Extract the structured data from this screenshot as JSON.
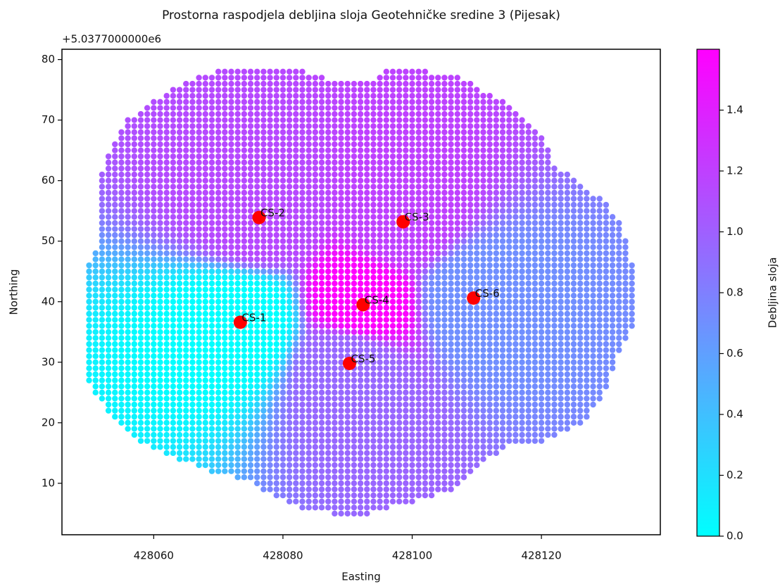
{
  "chart_data": {
    "type": "scatter",
    "title": "Prostorna raspodjela debljina sloja Geotehničke sredine 3 (Pijesak)",
    "offset_text": "+5.0377000000e6",
    "xlabel": "Easting",
    "ylabel": "Northing",
    "xlim": [
      428045.8,
      428138.4
    ],
    "ylim": [
      1.5,
      81.7
    ],
    "xticks": [
      428060,
      428080,
      428100,
      428120
    ],
    "yticks": [
      10,
      20,
      30,
      40,
      50,
      60,
      70,
      80
    ],
    "grid_step": 1,
    "outline": {
      "x": [
        428051.5,
        428052.6,
        428055.3,
        428059.1,
        428064.5,
        428070.0,
        428083.3,
        428087.4,
        428092.8,
        428096.1,
        428101.3,
        428107.0,
        428112.4,
        428117.9,
        428120.6,
        428121.7,
        428124.4,
        428129.9,
        428132.6,
        428134.2,
        428134.4,
        428132.0,
        428129.9,
        428126.6,
        428120.1,
        428114.1,
        428110.3,
        428107.0,
        428101.5,
        428092.8,
        428087.9,
        428083.0,
        428077.6,
        428073.8,
        428068.9,
        428062.3,
        428057.4,
        428053.6,
        428050.4,
        428049.5,
        428049.5,
        428051.5
      ],
      "y": [
        59.4,
        63.7,
        69.5,
        72.4,
        76.2,
        78.2,
        78.2,
        76.5,
        76.2,
        78.2,
        78.2,
        77.1,
        74.2,
        70.1,
        66.6,
        62.5,
        61.4,
        56.2,
        52.7,
        45.7,
        35.8,
        31.7,
        24.8,
        20.1,
        16.6,
        16.0,
        12.5,
        9.1,
        7.3,
        4.8,
        4.8,
        5.9,
        8.5,
        10.8,
        12.0,
        14.3,
        17.2,
        21.3,
        24.8,
        28.2,
        45.1,
        49.4
      ]
    },
    "boreholes": {
      "labels": [
        "CS-1",
        "CS-2",
        "CS-3",
        "CS-4",
        "CS-5",
        "CS-6"
      ],
      "x": [
        428073.4,
        428076.3,
        428098.6,
        428092.4,
        428090.3,
        428109.5
      ],
      "y": [
        36.6,
        53.9,
        53.2,
        39.5,
        29.8,
        40.6
      ],
      "values": [
        0.0,
        1.15,
        1.2,
        1.6,
        0.95,
        0.7
      ],
      "color": "#ff0000"
    },
    "colorbar": {
      "label": "Debljina sloja",
      "colormap": "cool",
      "clim": [
        0,
        1.6
      ],
      "ticks": [
        {
          "value": 0,
          "label": "0.0"
        },
        {
          "value": 0.2,
          "label": "0.2"
        },
        {
          "value": 0.4,
          "label": "0.4"
        },
        {
          "value": 0.6,
          "label": "0.6"
        },
        {
          "value": 0.8,
          "label": "0.8"
        },
        {
          "value": 1.0,
          "label": "1.0"
        },
        {
          "value": 1.2,
          "label": "1.2"
        },
        {
          "value": 1.4,
          "label": "1.4"
        }
      ]
    }
  }
}
